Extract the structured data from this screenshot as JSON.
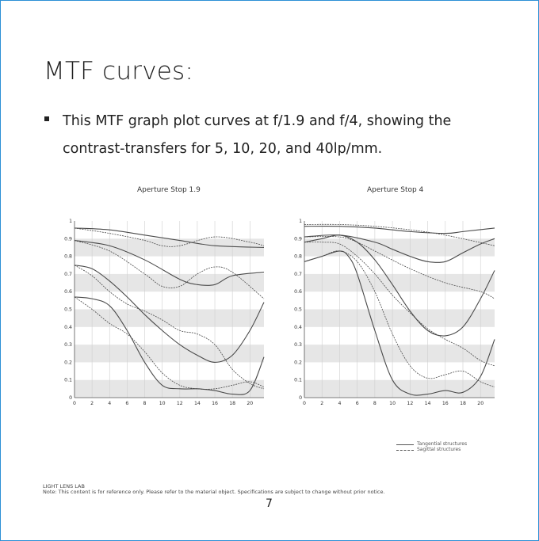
{
  "page": {
    "title": "MTF curves:",
    "bullet": "This MTF graph plot curves at f/1.9 and f/4, showing the contrast-transfers for 5, 10, 20, and 40lp/mm.",
    "footer_brand": "LIGHT LENS LAB",
    "footer_note": "Note: This content is for reference only. Please refer to the material object. Specifications are subject to change without prior notice.",
    "page_number": "7"
  },
  "legend": {
    "tangential": "Tangential structures",
    "sagittal": "Sagittal structures"
  },
  "colors": {
    "frame": "#2b8fd6",
    "band": "#e6e6e6",
    "line": "#4a4a4a"
  },
  "chart_data": [
    {
      "type": "line",
      "title": "Aperture Stop  1.9",
      "xlim": [
        0,
        21.6
      ],
      "ylim": [
        0,
        1
      ],
      "x_ticks": [
        "0",
        "2",
        "4",
        "6",
        "8",
        "10",
        "12",
        "14",
        "16",
        "18",
        "20"
      ],
      "y_ticks": [
        "0",
        "0.1",
        "0.2",
        "0.3",
        "0.4",
        "0.5",
        "0.6",
        "0.7",
        "0.8",
        "0.9",
        "1"
      ],
      "series": [
        {
          "style": "solid",
          "x": [
            0,
            4,
            8,
            12,
            16,
            21.6
          ],
          "y": [
            0.96,
            0.95,
            0.92,
            0.89,
            0.86,
            0.85
          ]
        },
        {
          "style": "dashed",
          "x": [
            0,
            4,
            8,
            10,
            12,
            16,
            20,
            21.6
          ],
          "y": [
            0.96,
            0.93,
            0.89,
            0.86,
            0.86,
            0.91,
            0.88,
            0.86
          ]
        },
        {
          "style": "solid",
          "x": [
            0,
            4,
            8,
            12,
            14,
            16,
            18,
            21.6
          ],
          "y": [
            0.89,
            0.86,
            0.78,
            0.67,
            0.64,
            0.64,
            0.69,
            0.71
          ]
        },
        {
          "style": "dashed",
          "x": [
            0,
            4,
            8,
            10,
            12,
            14,
            16,
            18,
            21.6
          ],
          "y": [
            0.89,
            0.83,
            0.7,
            0.63,
            0.63,
            0.7,
            0.74,
            0.71,
            0.56
          ]
        },
        {
          "style": "solid",
          "x": [
            0,
            2,
            4,
            6,
            8,
            10,
            12,
            14,
            16,
            18,
            20,
            21.6
          ],
          "y": [
            0.75,
            0.73,
            0.66,
            0.57,
            0.47,
            0.38,
            0.3,
            0.24,
            0.2,
            0.24,
            0.38,
            0.54
          ]
        },
        {
          "style": "dashed",
          "x": [
            0,
            2,
            4,
            6,
            8,
            10,
            12,
            14,
            16,
            18,
            20,
            21.6
          ],
          "y": [
            0.75,
            0.69,
            0.6,
            0.53,
            0.49,
            0.44,
            0.38,
            0.36,
            0.3,
            0.16,
            0.08,
            0.05
          ]
        },
        {
          "style": "solid",
          "x": [
            0,
            2,
            4,
            6,
            8,
            10,
            12,
            14,
            16,
            18,
            20,
            21.6
          ],
          "y": [
            0.57,
            0.56,
            0.52,
            0.38,
            0.2,
            0.07,
            0.05,
            0.05,
            0.04,
            0.02,
            0.04,
            0.23
          ]
        },
        {
          "style": "dashed",
          "x": [
            0,
            2,
            4,
            6,
            8,
            10,
            12,
            14,
            16,
            18,
            20,
            21.6
          ],
          "y": [
            0.57,
            0.5,
            0.42,
            0.36,
            0.26,
            0.14,
            0.07,
            0.05,
            0.05,
            0.07,
            0.09,
            0.06
          ]
        }
      ]
    },
    {
      "type": "line",
      "title": "Aperture Stop  4",
      "xlim": [
        0,
        21.6
      ],
      "ylim": [
        0,
        1
      ],
      "x_ticks": [
        "0",
        "2",
        "4",
        "6",
        "8",
        "10",
        "12",
        "14",
        "16",
        "18",
        "20"
      ],
      "y_ticks": [
        "0",
        "0.1",
        "0.2",
        "0.3",
        "0.4",
        "0.5",
        "0.6",
        "0.7",
        "0.8",
        "0.9",
        "1"
      ],
      "series": [
        {
          "style": "solid",
          "x": [
            0,
            4,
            8,
            12,
            16,
            18,
            21.6
          ],
          "y": [
            0.97,
            0.97,
            0.96,
            0.94,
            0.93,
            0.94,
            0.96
          ]
        },
        {
          "style": "dashed",
          "x": [
            0,
            4,
            8,
            12,
            16,
            21.6
          ],
          "y": [
            0.98,
            0.98,
            0.97,
            0.95,
            0.92,
            0.86
          ]
        },
        {
          "style": "solid",
          "x": [
            0,
            4,
            8,
            10,
            12,
            14,
            16,
            18,
            20,
            21.6
          ],
          "y": [
            0.91,
            0.92,
            0.88,
            0.84,
            0.8,
            0.77,
            0.77,
            0.82,
            0.87,
            0.9
          ]
        },
        {
          "style": "dashed",
          "x": [
            0,
            4,
            6,
            8,
            12,
            16,
            20,
            21.6
          ],
          "y": [
            0.91,
            0.91,
            0.88,
            0.83,
            0.73,
            0.65,
            0.6,
            0.56
          ]
        },
        {
          "style": "solid",
          "x": [
            0,
            2,
            4,
            6,
            8,
            10,
            12,
            14,
            16,
            18,
            20,
            21.6
          ],
          "y": [
            0.88,
            0.9,
            0.92,
            0.88,
            0.78,
            0.64,
            0.49,
            0.38,
            0.35,
            0.4,
            0.56,
            0.72
          ]
        },
        {
          "style": "dashed",
          "x": [
            0,
            2,
            4,
            6,
            8,
            10,
            12,
            14,
            16,
            18,
            20,
            21.6
          ],
          "y": [
            0.88,
            0.88,
            0.87,
            0.8,
            0.7,
            0.58,
            0.48,
            0.39,
            0.33,
            0.28,
            0.21,
            0.18
          ]
        },
        {
          "style": "solid",
          "x": [
            0,
            2,
            4,
            5,
            6,
            8,
            10,
            12,
            14,
            16,
            18,
            20,
            21.6
          ],
          "y": [
            0.77,
            0.8,
            0.83,
            0.8,
            0.7,
            0.38,
            0.1,
            0.02,
            0.02,
            0.04,
            0.03,
            0.12,
            0.33
          ]
        },
        {
          "style": "dashed",
          "x": [
            0,
            2,
            4,
            6,
            8,
            10,
            12,
            14,
            16,
            18,
            20,
            21.6
          ],
          "y": [
            0.77,
            0.8,
            0.83,
            0.77,
            0.6,
            0.36,
            0.18,
            0.11,
            0.13,
            0.15,
            0.09,
            0.06
          ]
        }
      ]
    }
  ]
}
